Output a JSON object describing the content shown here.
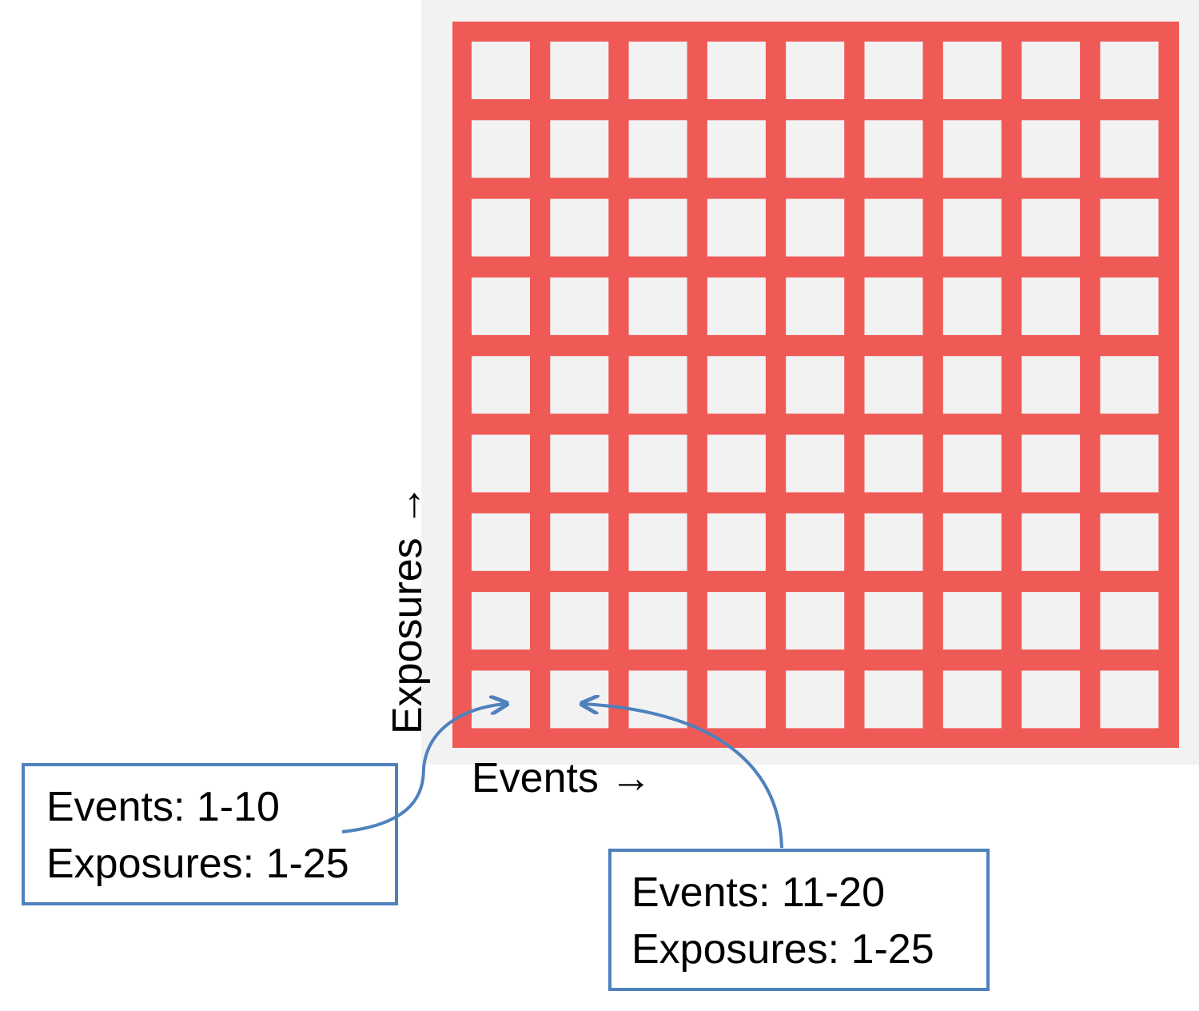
{
  "axis_labels": {
    "y": "Exposures →",
    "x": "Events →"
  },
  "callouts": [
    {
      "lines": [
        "Events: 1-10",
        "Exposures: 1-25"
      ]
    },
    {
      "lines": [
        "Events: 11-20",
        "Exposures: 1-25"
      ]
    }
  ]
}
